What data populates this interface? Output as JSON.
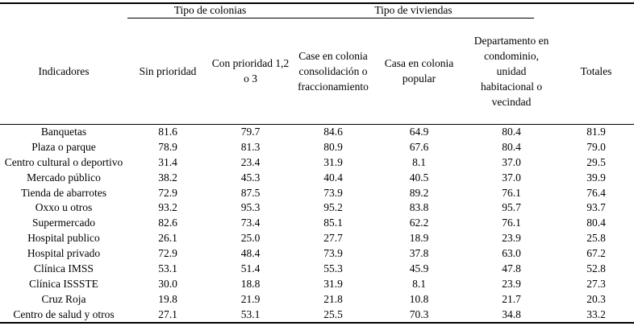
{
  "table": {
    "text_color": "#000000",
    "background_color": "#ffffff",
    "rule_color": "#000000",
    "col_groups": [
      {
        "label": "Tipo de colonias",
        "span_columns": 2
      },
      {
        "label": "Tipo de viviendas",
        "span_columns": 3
      }
    ],
    "columns": [
      "Indicadores",
      "Sin prioridad",
      "Con prioridad 1,2\no 3",
      "Case en colonia\nconsolidación o\nfraccionamiento",
      "Casa en colonia\npopular",
      "Departamento en\ncondominio,\nunidad\nhabitacional o\nvecindad",
      "Totales"
    ],
    "rows": [
      {
        "label": "Banquetas",
        "values": [
          "81.6",
          "79.7",
          "84.6",
          "64.9",
          "80.4",
          "81.9"
        ]
      },
      {
        "label": "Plaza o parque",
        "values": [
          "78.9",
          "81.3",
          "80.9",
          "67.6",
          "80.4",
          "79.0"
        ]
      },
      {
        "label": "Centro cultural o deportivo",
        "values": [
          "31.4",
          "23.4",
          "31.9",
          "8.1",
          "37.0",
          "29.5"
        ]
      },
      {
        "label": "Mercado público",
        "values": [
          "38.2",
          "45.3",
          "40.4",
          "40.5",
          "37.0",
          "39.9"
        ]
      },
      {
        "label": "Tienda de abarrotes",
        "values": [
          "72.9",
          "87.5",
          "73.9",
          "89.2",
          "76.1",
          "76.4"
        ]
      },
      {
        "label": "Oxxo u otros",
        "values": [
          "93.2",
          "95.3",
          "95.2",
          "83.8",
          "95.7",
          "93.7"
        ]
      },
      {
        "label": "Supermercado",
        "values": [
          "82.6",
          "73.4",
          "85.1",
          "62.2",
          "76.1",
          "80.4"
        ]
      },
      {
        "label": "Hospital publico",
        "values": [
          "26.1",
          "25.0",
          "27.7",
          "18.9",
          "23.9",
          "25.8"
        ]
      },
      {
        "label": "Hospital privado",
        "values": [
          "72.9",
          "48.4",
          "73.9",
          "37.8",
          "63.0",
          "67.2"
        ]
      },
      {
        "label": "Clínica IMSS",
        "values": [
          "53.1",
          "51.4",
          "55.3",
          "45.9",
          "47.8",
          "52.8"
        ]
      },
      {
        "label": "Clínica ISSSTE",
        "values": [
          "30.0",
          "18.8",
          "31.9",
          "8.1",
          "23.9",
          "27.3"
        ]
      },
      {
        "label": "Cruz Roja",
        "values": [
          "19.8",
          "21.9",
          "21.8",
          "10.8",
          "21.7",
          "20.3"
        ]
      },
      {
        "label": "Centro de salud y otros",
        "values": [
          "27.1",
          "53.1",
          "25.5",
          "70.3",
          "34.8",
          "33.2"
        ]
      }
    ]
  }
}
